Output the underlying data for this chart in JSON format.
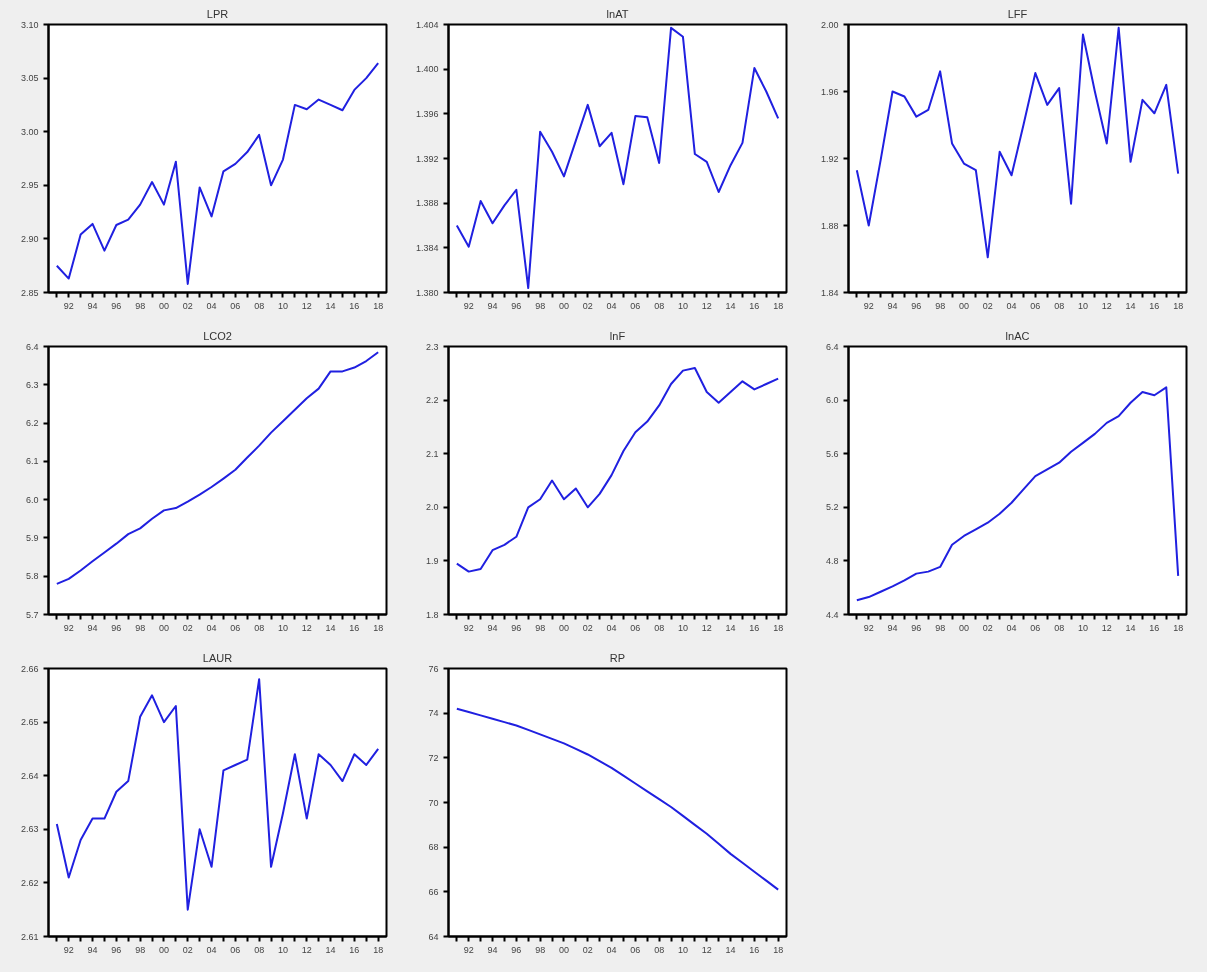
{
  "chart_data": [
    {
      "type": "line",
      "title": "LPR",
      "x": [
        1991,
        1992,
        1993,
        1994,
        1995,
        1996,
        1997,
        1998,
        1999,
        2000,
        2001,
        2002,
        2003,
        2004,
        2005,
        2006,
        2007,
        2008,
        2009,
        2010,
        2011,
        2012,
        2013,
        2014,
        2015,
        2016,
        2017,
        2018
      ],
      "series": [
        {
          "color": "#2020e0",
          "values": [
            2.875,
            2.863,
            2.904,
            2.914,
            2.889,
            2.913,
            2.918,
            2.932,
            2.953,
            2.932,
            2.972,
            2.858,
            2.948,
            2.921,
            2.963,
            2.97,
            2.981,
            2.997,
            2.95,
            2.974,
            3.025,
            3.021,
            3.03,
            3.025,
            3.02,
            3.039,
            3.05,
            3.064
          ]
        }
      ],
      "xlim": [
        1990.3,
        2018.7
      ],
      "ylim": [
        2.85,
        3.1
      ],
      "yticks": [
        2.85,
        {
          "value": 2.9,
          "label": "2.90"
        },
        2.95,
        {
          "value": 3.0,
          "label": "3.00"
        },
        3.05,
        {
          "value": 3.1,
          "label": "3.10"
        }
      ],
      "xticks": [
        {
          "value": 1991,
          "label": null
        },
        {
          "value": 1992,
          "label": "92"
        },
        {
          "value": 1993,
          "label": null
        },
        {
          "value": 1994,
          "label": "94"
        },
        {
          "value": 1995,
          "label": null
        },
        {
          "value": 1996,
          "label": "96"
        },
        {
          "value": 1997,
          "label": null
        },
        {
          "value": 1998,
          "label": "98"
        },
        {
          "value": 1999,
          "label": null
        },
        {
          "value": 2000,
          "label": "00"
        },
        {
          "value": 2001,
          "label": null
        },
        {
          "value": 2002,
          "label": "02"
        },
        {
          "value": 2003,
          "label": null
        },
        {
          "value": 2004,
          "label": "04"
        },
        {
          "value": 2005,
          "label": null
        },
        {
          "value": 2006,
          "label": "06"
        },
        {
          "value": 2007,
          "label": null
        },
        {
          "value": 2008,
          "label": "08"
        },
        {
          "value": 2009,
          "label": null
        },
        {
          "value": 2010,
          "label": "10"
        },
        {
          "value": 2011,
          "label": null
        },
        {
          "value": 2012,
          "label": "12"
        },
        {
          "value": 2013,
          "label": null
        },
        {
          "value": 2014,
          "label": "14"
        },
        {
          "value": 2015,
          "label": null
        },
        {
          "value": 2016,
          "label": "16"
        },
        {
          "value": 2017,
          "label": null
        },
        {
          "value": 2018,
          "label": "18"
        }
      ],
      "grid": false
    },
    {
      "type": "line",
      "title": "lnAT",
      "x": [
        1991,
        1992,
        1993,
        1994,
        1995,
        1996,
        1997,
        1998,
        1999,
        2000,
        2001,
        2002,
        2003,
        2004,
        2005,
        2006,
        2007,
        2008,
        2009,
        2010,
        2011,
        2012,
        2013,
        2014,
        2015,
        2016,
        2017,
        2018
      ],
      "series": [
        {
          "color": "#2020e0",
          "values": [
            1.386,
            1.3841,
            1.3882,
            1.3862,
            1.3878,
            1.3892,
            1.3804,
            1.3944,
            1.3926,
            1.3904,
            1.3936,
            1.3968,
            1.3931,
            1.3943,
            1.3897,
            1.3958,
            1.3957,
            1.3916,
            1.4037,
            1.4029,
            1.3924,
            1.3917,
            1.389,
            1.3914,
            1.3934,
            1.4001,
            1.398,
            1.3956
          ]
        }
      ],
      "xlim": [
        1990.3,
        2018.7
      ],
      "ylim": [
        1.38,
        1.404
      ],
      "yticks": [
        {
          "value": 1.38,
          "label": "1.380"
        },
        {
          "value": 1.384,
          "label": "1.384"
        },
        {
          "value": 1.388,
          "label": "1.388"
        },
        {
          "value": 1.392,
          "label": "1.392"
        },
        {
          "value": 1.396,
          "label": "1.396"
        },
        {
          "value": 1.4,
          "label": "1.400"
        },
        {
          "value": 1.404,
          "label": "1.404"
        }
      ],
      "xticks": [
        {
          "value": 1991,
          "label": null
        },
        {
          "value": 1992,
          "label": "92"
        },
        {
          "value": 1993,
          "label": null
        },
        {
          "value": 1994,
          "label": "94"
        },
        {
          "value": 1995,
          "label": null
        },
        {
          "value": 1996,
          "label": "96"
        },
        {
          "value": 1997,
          "label": null
        },
        {
          "value": 1998,
          "label": "98"
        },
        {
          "value": 1999,
          "label": null
        },
        {
          "value": 2000,
          "label": "00"
        },
        {
          "value": 2001,
          "label": null
        },
        {
          "value": 2002,
          "label": "02"
        },
        {
          "value": 2003,
          "label": null
        },
        {
          "value": 2004,
          "label": "04"
        },
        {
          "value": 2005,
          "label": null
        },
        {
          "value": 2006,
          "label": "06"
        },
        {
          "value": 2007,
          "label": null
        },
        {
          "value": 2008,
          "label": "08"
        },
        {
          "value": 2009,
          "label": null
        },
        {
          "value": 2010,
          "label": "10"
        },
        {
          "value": 2011,
          "label": null
        },
        {
          "value": 2012,
          "label": "12"
        },
        {
          "value": 2013,
          "label": null
        },
        {
          "value": 2014,
          "label": "14"
        },
        {
          "value": 2015,
          "label": null
        },
        {
          "value": 2016,
          "label": "16"
        },
        {
          "value": 2017,
          "label": null
        },
        {
          "value": 2018,
          "label": "18"
        }
      ],
      "grid": false
    },
    {
      "type": "line",
      "title": "LFF",
      "x": [
        1991,
        1992,
        1993,
        1994,
        1995,
        1996,
        1997,
        1998,
        1999,
        2000,
        2001,
        2002,
        2003,
        2004,
        2005,
        2006,
        2007,
        2008,
        2009,
        2010,
        2011,
        2012,
        2013,
        2014,
        2015,
        2016,
        2017,
        2018
      ],
      "series": [
        {
          "color": "#2020e0",
          "values": [
            1.913,
            1.88,
            1.919,
            1.96,
            1.957,
            1.945,
            1.949,
            1.972,
            1.929,
            1.917,
            1.913,
            1.861,
            1.924,
            1.91,
            1.94,
            1.971,
            1.952,
            1.962,
            1.893,
            1.994,
            1.96,
            1.929,
            1.998,
            1.918,
            1.955,
            1.947,
            1.964,
            1.911
          ]
        }
      ],
      "xlim": [
        1990.3,
        2018.7
      ],
      "ylim": [
        1.84,
        2.0
      ],
      "yticks": [
        1.84,
        1.88,
        1.92,
        1.96,
        {
          "value": 2.0,
          "label": "2.00"
        }
      ],
      "xticks": [
        {
          "value": 1991,
          "label": null
        },
        {
          "value": 1992,
          "label": "92"
        },
        {
          "value": 1993,
          "label": null
        },
        {
          "value": 1994,
          "label": "94"
        },
        {
          "value": 1995,
          "label": null
        },
        {
          "value": 1996,
          "label": "96"
        },
        {
          "value": 1997,
          "label": null
        },
        {
          "value": 1998,
          "label": "98"
        },
        {
          "value": 1999,
          "label": null
        },
        {
          "value": 2000,
          "label": "00"
        },
        {
          "value": 2001,
          "label": null
        },
        {
          "value": 2002,
          "label": "02"
        },
        {
          "value": 2003,
          "label": null
        },
        {
          "value": 2004,
          "label": "04"
        },
        {
          "value": 2005,
          "label": null
        },
        {
          "value": 2006,
          "label": "06"
        },
        {
          "value": 2007,
          "label": null
        },
        {
          "value": 2008,
          "label": "08"
        },
        {
          "value": 2009,
          "label": null
        },
        {
          "value": 2010,
          "label": "10"
        },
        {
          "value": 2011,
          "label": null
        },
        {
          "value": 2012,
          "label": "12"
        },
        {
          "value": 2013,
          "label": null
        },
        {
          "value": 2014,
          "label": "14"
        },
        {
          "value": 2015,
          "label": null
        },
        {
          "value": 2016,
          "label": "16"
        },
        {
          "value": 2017,
          "label": null
        },
        {
          "value": 2018,
          "label": "18"
        }
      ],
      "grid": false
    },
    {
      "type": "line",
      "title": "LCO2",
      "x": [
        1991,
        1992,
        1993,
        1994,
        1995,
        1996,
        1997,
        1998,
        1999,
        2000,
        2001,
        2002,
        2003,
        2004,
        2005,
        2006,
        2007,
        2008,
        2009,
        2010,
        2011,
        2012,
        2013,
        2014,
        2015,
        2016,
        2017,
        2018
      ],
      "series": [
        {
          "color": "#2020e0",
          "values": [
            5.78,
            5.793,
            5.815,
            5.839,
            5.862,
            5.885,
            5.91,
            5.925,
            5.95,
            5.972,
            5.978,
            5.995,
            6.013,
            6.033,
            6.055,
            6.078,
            6.11,
            6.141,
            6.175,
            6.205,
            6.235,
            6.265,
            6.29,
            6.335,
            6.335,
            6.345,
            6.362,
            6.385
          ]
        }
      ],
      "xlim": [
        1990.3,
        2018.7
      ],
      "ylim": [
        5.7,
        6.4
      ],
      "yticks": [
        5.7,
        5.8,
        5.9,
        {
          "value": 6.0,
          "label": "6.0"
        },
        6.1,
        6.2,
        6.3,
        6.4
      ],
      "xticks": [
        {
          "value": 1991,
          "label": null
        },
        {
          "value": 1992,
          "label": "92"
        },
        {
          "value": 1993,
          "label": null
        },
        {
          "value": 1994,
          "label": "94"
        },
        {
          "value": 1995,
          "label": null
        },
        {
          "value": 1996,
          "label": "96"
        },
        {
          "value": 1997,
          "label": null
        },
        {
          "value": 1998,
          "label": "98"
        },
        {
          "value": 1999,
          "label": null
        },
        {
          "value": 2000,
          "label": "00"
        },
        {
          "value": 2001,
          "label": null
        },
        {
          "value": 2002,
          "label": "02"
        },
        {
          "value": 2003,
          "label": null
        },
        {
          "value": 2004,
          "label": "04"
        },
        {
          "value": 2005,
          "label": null
        },
        {
          "value": 2006,
          "label": "06"
        },
        {
          "value": 2007,
          "label": null
        },
        {
          "value": 2008,
          "label": "08"
        },
        {
          "value": 2009,
          "label": null
        },
        {
          "value": 2010,
          "label": "10"
        },
        {
          "value": 2011,
          "label": null
        },
        {
          "value": 2012,
          "label": "12"
        },
        {
          "value": 2013,
          "label": null
        },
        {
          "value": 2014,
          "label": "14"
        },
        {
          "value": 2015,
          "label": null
        },
        {
          "value": 2016,
          "label": "16"
        },
        {
          "value": 2017,
          "label": null
        },
        {
          "value": 2018,
          "label": "18"
        }
      ],
      "grid": false
    },
    {
      "type": "line",
      "title": "lnF",
      "x": [
        1991,
        1992,
        1993,
        1994,
        1995,
        1996,
        1997,
        1998,
        1999,
        2000,
        2001,
        2002,
        2003,
        2004,
        2005,
        2006,
        2007,
        2008,
        2009,
        2010,
        2011,
        2012,
        2013,
        2014,
        2015,
        2016,
        2017,
        2018
      ],
      "series": [
        {
          "color": "#2020e0",
          "values": [
            1.895,
            1.88,
            1.885,
            1.92,
            1.93,
            1.945,
            2.0,
            2.015,
            2.05,
            2.015,
            2.035,
            2.0,
            2.025,
            2.06,
            2.105,
            2.14,
            2.16,
            2.19,
            2.23,
            2.255,
            2.26,
            2.215,
            2.195,
            2.215,
            2.235,
            2.22,
            2.23,
            2.24
          ]
        }
      ],
      "xlim": [
        1990.3,
        2018.7
      ],
      "ylim": [
        1.8,
        2.3
      ],
      "yticks": [
        1.8,
        1.9,
        {
          "value": 2.0,
          "label": "2.0"
        },
        2.1,
        2.2,
        2.3
      ],
      "xticks": [
        {
          "value": 1991,
          "label": null
        },
        {
          "value": 1992,
          "label": "92"
        },
        {
          "value": 1993,
          "label": null
        },
        {
          "value": 1994,
          "label": "94"
        },
        {
          "value": 1995,
          "label": null
        },
        {
          "value": 1996,
          "label": "96"
        },
        {
          "value": 1997,
          "label": null
        },
        {
          "value": 1998,
          "label": "98"
        },
        {
          "value": 1999,
          "label": null
        },
        {
          "value": 2000,
          "label": "00"
        },
        {
          "value": 2001,
          "label": null
        },
        {
          "value": 2002,
          "label": "02"
        },
        {
          "value": 2003,
          "label": null
        },
        {
          "value": 2004,
          "label": "04"
        },
        {
          "value": 2005,
          "label": null
        },
        {
          "value": 2006,
          "label": "06"
        },
        {
          "value": 2007,
          "label": null
        },
        {
          "value": 2008,
          "label": "08"
        },
        {
          "value": 2009,
          "label": null
        },
        {
          "value": 2010,
          "label": "10"
        },
        {
          "value": 2011,
          "label": null
        },
        {
          "value": 2012,
          "label": "12"
        },
        {
          "value": 2013,
          "label": null
        },
        {
          "value": 2014,
          "label": "14"
        },
        {
          "value": 2015,
          "label": null
        },
        {
          "value": 2016,
          "label": "16"
        },
        {
          "value": 2017,
          "label": null
        },
        {
          "value": 2018,
          "label": "18"
        }
      ],
      "grid": false
    },
    {
      "type": "line",
      "title": "lnAC",
      "x": [
        1991,
        1992,
        1993,
        1994,
        1995,
        1996,
        1997,
        1998,
        1999,
        2000,
        2001,
        2002,
        2003,
        2004,
        2005,
        2006,
        2007,
        2008,
        2009,
        2010,
        2011,
        2012,
        2013,
        2014,
        2015,
        2016,
        2017,
        2018
      ],
      "series": [
        {
          "color": "#2020e0",
          "values": [
            4.506,
            4.53,
            4.57,
            4.61,
            4.655,
            4.705,
            4.72,
            4.755,
            4.92,
            4.986,
            5.036,
            5.085,
            5.152,
            5.234,
            5.334,
            5.433,
            5.483,
            5.533,
            5.615,
            5.681,
            5.748,
            5.83,
            5.88,
            5.98,
            6.06,
            6.036,
            6.095,
            4.688
          ]
        }
      ],
      "xlim": [
        1990.3,
        2018.7
      ],
      "ylim": [
        4.4,
        6.4
      ],
      "yticks": [
        4.4,
        4.8,
        5.2,
        5.6,
        {
          "value": 6.0,
          "label": "6.0"
        },
        6.4
      ],
      "xticks": [
        {
          "value": 1991,
          "label": null
        },
        {
          "value": 1992,
          "label": "92"
        },
        {
          "value": 1993,
          "label": null
        },
        {
          "value": 1994,
          "label": "94"
        },
        {
          "value": 1995,
          "label": null
        },
        {
          "value": 1996,
          "label": "96"
        },
        {
          "value": 1997,
          "label": null
        },
        {
          "value": 1998,
          "label": "98"
        },
        {
          "value": 1999,
          "label": null
        },
        {
          "value": 2000,
          "label": "00"
        },
        {
          "value": 2001,
          "label": null
        },
        {
          "value": 2002,
          "label": "02"
        },
        {
          "value": 2003,
          "label": null
        },
        {
          "value": 2004,
          "label": "04"
        },
        {
          "value": 2005,
          "label": null
        },
        {
          "value": 2006,
          "label": "06"
        },
        {
          "value": 2007,
          "label": null
        },
        {
          "value": 2008,
          "label": "08"
        },
        {
          "value": 2009,
          "label": null
        },
        {
          "value": 2010,
          "label": "10"
        },
        {
          "value": 2011,
          "label": null
        },
        {
          "value": 2012,
          "label": "12"
        },
        {
          "value": 2013,
          "label": null
        },
        {
          "value": 2014,
          "label": "14"
        },
        {
          "value": 2015,
          "label": null
        },
        {
          "value": 2016,
          "label": "16"
        },
        {
          "value": 2017,
          "label": null
        },
        {
          "value": 2018,
          "label": "18"
        }
      ],
      "grid": false
    },
    {
      "type": "line",
      "title": "LAUR",
      "x": [
        1991,
        1992,
        1993,
        1994,
        1995,
        1996,
        1997,
        1998,
        1999,
        2000,
        2001,
        2002,
        2003,
        2004,
        2005,
        2006,
        2007,
        2008,
        2009,
        2010,
        2011,
        2012,
        2013,
        2014,
        2015,
        2016,
        2017,
        2018
      ],
      "series": [
        {
          "color": "#2020e0",
          "values": [
            2.631,
            2.621,
            2.628,
            2.632,
            2.632,
            2.637,
            2.639,
            2.651,
            2.655,
            2.65,
            2.653,
            2.615,
            2.63,
            2.623,
            2.641,
            2.642,
            2.643,
            2.658,
            2.623,
            2.633,
            2.644,
            2.632,
            2.644,
            2.642,
            2.639,
            2.644,
            2.642,
            2.645
          ]
        }
      ],
      "xlim": [
        1990.3,
        2018.7
      ],
      "ylim": [
        2.61,
        2.66
      ],
      "yticks": [
        2.61,
        2.62,
        2.63,
        2.64,
        2.65,
        2.66
      ],
      "xticks": [
        {
          "value": 1991,
          "label": null
        },
        {
          "value": 1992,
          "label": "92"
        },
        {
          "value": 1993,
          "label": null
        },
        {
          "value": 1994,
          "label": "94"
        },
        {
          "value": 1995,
          "label": null
        },
        {
          "value": 1996,
          "label": "96"
        },
        {
          "value": 1997,
          "label": null
        },
        {
          "value": 1998,
          "label": "98"
        },
        {
          "value": 1999,
          "label": null
        },
        {
          "value": 2000,
          "label": "00"
        },
        {
          "value": 2001,
          "label": null
        },
        {
          "value": 2002,
          "label": "02"
        },
        {
          "value": 2003,
          "label": null
        },
        {
          "value": 2004,
          "label": "04"
        },
        {
          "value": 2005,
          "label": null
        },
        {
          "value": 2006,
          "label": "06"
        },
        {
          "value": 2007,
          "label": null
        },
        {
          "value": 2008,
          "label": "08"
        },
        {
          "value": 2009,
          "label": null
        },
        {
          "value": 2010,
          "label": "10"
        },
        {
          "value": 2011,
          "label": null
        },
        {
          "value": 2012,
          "label": "12"
        },
        {
          "value": 2013,
          "label": null
        },
        {
          "value": 2014,
          "label": "14"
        },
        {
          "value": 2015,
          "label": null
        },
        {
          "value": 2016,
          "label": "16"
        },
        {
          "value": 2017,
          "label": null
        },
        {
          "value": 2018,
          "label": "18"
        }
      ],
      "grid": false
    },
    {
      "type": "line",
      "title": "RP",
      "x": [
        1991,
        1992,
        1993,
        1994,
        1995,
        1996,
        1997,
        1998,
        1999,
        2000,
        2001,
        2002,
        2003,
        2004,
        2005,
        2006,
        2007,
        2008,
        2009,
        2010,
        2011,
        2012,
        2013,
        2014,
        2015,
        2016,
        2017,
        2018
      ],
      "series": [
        {
          "color": "#2020e0",
          "values": [
            74.2,
            74.05,
            73.9,
            73.75,
            73.6,
            73.45,
            73.25,
            73.05,
            72.85,
            72.65,
            72.4,
            72.15,
            71.85,
            71.55,
            71.2,
            70.85,
            70.5,
            70.15,
            69.8,
            69.4,
            69.0,
            68.6,
            68.15,
            67.7,
            67.3,
            66.9,
            66.5,
            66.1
          ]
        }
      ],
      "xlim": [
        1990.3,
        2018.7
      ],
      "ylim": [
        64,
        76
      ],
      "yticks": [
        64,
        66,
        68,
        70,
        72,
        74,
        76
      ],
      "xticks": [
        {
          "value": 1991,
          "label": null
        },
        {
          "value": 1992,
          "label": "92"
        },
        {
          "value": 1993,
          "label": null
        },
        {
          "value": 1994,
          "label": "94"
        },
        {
          "value": 1995,
          "label": null
        },
        {
          "value": 1996,
          "label": "96"
        },
        {
          "value": 1997,
          "label": null
        },
        {
          "value": 1998,
          "label": "98"
        },
        {
          "value": 1999,
          "label": null
        },
        {
          "value": 2000,
          "label": "00"
        },
        {
          "value": 2001,
          "label": null
        },
        {
          "value": 2002,
          "label": "02"
        },
        {
          "value": 2003,
          "label": null
        },
        {
          "value": 2004,
          "label": "04"
        },
        {
          "value": 2005,
          "label": null
        },
        {
          "value": 2006,
          "label": "06"
        },
        {
          "value": 2007,
          "label": null
        },
        {
          "value": 2008,
          "label": "08"
        },
        {
          "value": 2009,
          "label": null
        },
        {
          "value": 2010,
          "label": "10"
        },
        {
          "value": 2011,
          "label": null
        },
        {
          "value": 2012,
          "label": "12"
        },
        {
          "value": 2013,
          "label": null
        },
        {
          "value": 2014,
          "label": "14"
        },
        {
          "value": 2015,
          "label": null
        },
        {
          "value": 2016,
          "label": "16"
        },
        {
          "value": 2017,
          "label": null
        },
        {
          "value": 2018,
          "label": "18"
        }
      ],
      "grid": false
    }
  ]
}
